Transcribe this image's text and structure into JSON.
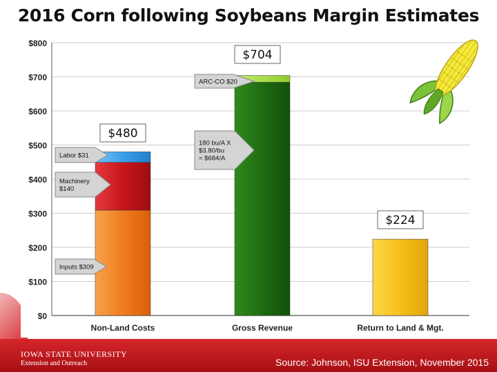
{
  "title": "2016 Corn following Soybeans Margin Estimates",
  "source": "Source:  Johnson, ISU Extension, November 2015",
  "logo": {
    "line1": "IOWA STATE UNIVERSITY",
    "line2": "Extension and Outreach"
  },
  "colors": {
    "inputs": "#f07c1f",
    "machinery": "#c8151b",
    "labor": "#3aa0e8",
    "revenue": "#1f6b12",
    "arc": "#a6dd40",
    "return": "#f6c01a",
    "footer": "#c21a20"
  },
  "chart_data": {
    "type": "bar",
    "stacked": true,
    "categories": [
      "Non-Land Costs",
      "Gross Revenue",
      "Return to Land & Mgt."
    ],
    "series": [
      {
        "name": "Inputs",
        "values": [
          309,
          0,
          0
        ]
      },
      {
        "name": "Machinery",
        "values": [
          140,
          0,
          0
        ]
      },
      {
        "name": "Labor",
        "values": [
          31,
          0,
          0
        ]
      },
      {
        "name": "Revenue",
        "values": [
          0,
          684,
          0
        ]
      },
      {
        "name": "ARC-CO",
        "values": [
          0,
          20,
          0
        ]
      },
      {
        "name": "Return",
        "values": [
          0,
          0,
          224
        ]
      }
    ],
    "ylim": [
      0,
      800
    ],
    "yticks": [
      0,
      100,
      200,
      300,
      400,
      500,
      600,
      700,
      800
    ],
    "ytick_labels": [
      "$0",
      "$100",
      "$200",
      "$300",
      "$400",
      "$500",
      "$600",
      "$700",
      "$800"
    ],
    "grid": true,
    "totals": [
      {
        "category": 0,
        "value": 480,
        "label": "$480"
      },
      {
        "category": 1,
        "value": 704,
        "label": "$704"
      },
      {
        "category": 2,
        "value": 224,
        "label": "$224"
      }
    ],
    "annotations": [
      {
        "text": "Inputs $309",
        "category": 0,
        "value": 309
      },
      {
        "text": "Machinery $140",
        "category": 0,
        "value": 449
      },
      {
        "text": "Labor $31",
        "category": 0,
        "value": 480
      },
      {
        "text": "ARC-CO  $20",
        "category": 1,
        "value": 704
      },
      {
        "text": "180 bu/A X $3.80/bu = $684/A",
        "category": 1,
        "value": 684
      }
    ]
  }
}
